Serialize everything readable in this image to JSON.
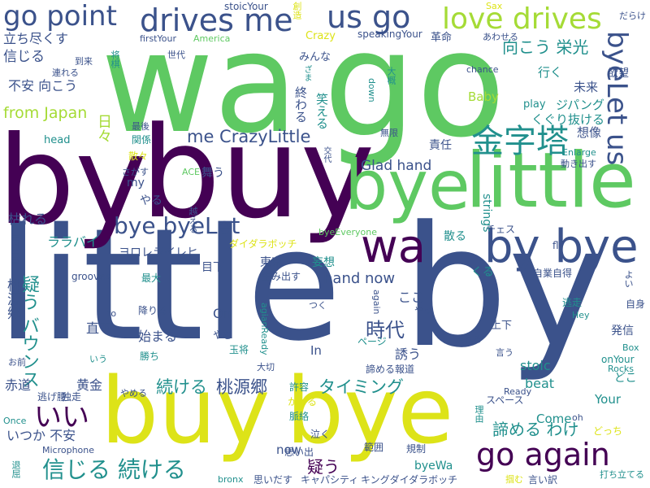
{
  "palette": {
    "purple": "#440154",
    "indigo": "#3b528b",
    "teal": "#21908d",
    "green": "#5ec962",
    "lime": "#a5db36",
    "yellow": "#dde318"
  },
  "words": [
    {
      "text": "little",
      "color": "indigo"
    },
    {
      "text": "by",
      "color": "indigo"
    },
    {
      "text": "wa",
      "color": "green"
    },
    {
      "text": "go",
      "color": "green"
    },
    {
      "text": "by",
      "color": "purple"
    },
    {
      "text": "buy",
      "color": "purple"
    },
    {
      "text": "buy",
      "color": "yellow"
    },
    {
      "text": "bye",
      "color": "yellow"
    },
    {
      "text": "bye",
      "color": "green"
    },
    {
      "text": "little",
      "color": "green"
    },
    {
      "text": "by bye",
      "color": "indigo"
    },
    {
      "text": "wa",
      "color": "purple"
    },
    {
      "text": "go point",
      "color": "indigo"
    },
    {
      "text": "drives me",
      "color": "indigo"
    },
    {
      "text": "us go",
      "color": "indigo"
    },
    {
      "text": "love drives",
      "color": "lime"
    },
    {
      "text": "金字塔",
      "color": "teal"
    },
    {
      "text": "byeLet us",
      "color": "indigo"
    },
    {
      "text": "bye byeLet",
      "color": "indigo"
    },
    {
      "text": "go again",
      "color": "purple"
    },
    {
      "text": "信じる 続ける",
      "color": "teal"
    },
    {
      "text": "me CrazyLittle",
      "color": "indigo"
    },
    {
      "text": "hand now",
      "color": "indigo"
    },
    {
      "text": "Glad hand",
      "color": "indigo"
    },
    {
      "text": "from Japan",
      "color": "lime"
    },
    {
      "text": "いい",
      "color": "purple"
    },
    {
      "text": "向こう 栄光",
      "color": "teal"
    },
    {
      "text": "時代",
      "color": "indigo"
    },
    {
      "text": "桃源郷",
      "color": "indigo"
    },
    {
      "text": "続ける",
      "color": "teal"
    },
    {
      "text": "タイミング",
      "color": "teal"
    },
    {
      "text": "疑う バウンス",
      "color": "teal"
    },
    {
      "text": "諦める わけ",
      "color": "teal"
    },
    {
      "text": "疑う",
      "color": "purple"
    },
    {
      "text": "立ち尽くす",
      "color": "indigo"
    },
    {
      "text": "信じる",
      "color": "indigo"
    },
    {
      "text": "不安 向こう",
      "color": "indigo"
    },
    {
      "text": "日々",
      "color": "lime"
    },
    {
      "text": "枯れる",
      "color": "indigo"
    },
    {
      "text": "ララバイ",
      "color": "teal"
    },
    {
      "text": "from",
      "color": "indigo"
    },
    {
      "text": "桃源郷",
      "color": "indigo"
    },
    {
      "text": "ヨロレライレヒ",
      "color": "indigo"
    },
    {
      "text": "やる",
      "color": "indigo"
    },
    {
      "text": "my",
      "color": "indigo"
    },
    {
      "text": "舞う",
      "color": "indigo"
    },
    {
      "text": "東京",
      "color": "indigo"
    },
    {
      "text": "目下",
      "color": "indigo"
    },
    {
      "text": "始まる",
      "color": "indigo"
    },
    {
      "text": "直下",
      "color": "indigo"
    },
    {
      "text": "On",
      "color": "indigo"
    },
    {
      "text": "黄金",
      "color": "indigo"
    },
    {
      "text": "いつか 不安",
      "color": "indigo"
    },
    {
      "text": "赤道",
      "color": "indigo"
    },
    {
      "text": "head",
      "color": "teal"
    },
    {
      "text": "Baby",
      "color": "lime"
    },
    {
      "text": "play",
      "color": "teal"
    },
    {
      "text": "ジパング",
      "color": "teal"
    },
    {
      "text": "くぐり抜ける",
      "color": "teal"
    },
    {
      "text": "行く",
      "color": "teal"
    },
    {
      "text": "欲望",
      "color": "indigo"
    },
    {
      "text": "未来",
      "color": "indigo"
    },
    {
      "text": "想像",
      "color": "indigo"
    },
    {
      "text": "責任",
      "color": "indigo"
    },
    {
      "text": "妄想",
      "color": "teal"
    },
    {
      "text": "散る",
      "color": "teal"
    },
    {
      "text": "くる",
      "color": "teal"
    },
    {
      "text": "ここ",
      "color": "indigo"
    },
    {
      "text": "誘う",
      "color": "indigo"
    },
    {
      "text": "In",
      "color": "indigo"
    },
    {
      "text": "stoic",
      "color": "teal"
    },
    {
      "text": "beat",
      "color": "teal"
    },
    {
      "text": "Your",
      "color": "teal"
    },
    {
      "text": "Come",
      "color": "teal"
    },
    {
      "text": "now",
      "color": "indigo"
    },
    {
      "text": "byeWa",
      "color": "teal"
    },
    {
      "text": "発信",
      "color": "indigo"
    },
    {
      "text": "どこ",
      "color": "teal"
    },
    {
      "text": "終わる",
      "color": "indigo"
    },
    {
      "text": "笑える",
      "color": "teal"
    },
    {
      "text": "stoicYour",
      "color": "indigo"
    },
    {
      "text": "speakingYour",
      "color": "indigo"
    },
    {
      "text": "Crazy",
      "color": "yellow"
    },
    {
      "text": "革命",
      "color": "indigo"
    },
    {
      "text": "みんな",
      "color": "indigo"
    },
    {
      "text": "strings",
      "color": "teal"
    },
    {
      "text": "上下",
      "color": "indigo"
    },
    {
      "text": "ページ",
      "color": "teal"
    },
    {
      "text": "諦める報道",
      "color": "indigo"
    },
    {
      "text": "スペース",
      "color": "indigo"
    },
    {
      "text": "キャパシティ",
      "color": "indigo"
    },
    {
      "text": "キングダイダラボッチ",
      "color": "indigo"
    },
    {
      "text": "思いだす",
      "color": "indigo"
    },
    {
      "text": "思い出",
      "color": "indigo"
    },
    {
      "text": "範囲",
      "color": "indigo"
    },
    {
      "text": "規制",
      "color": "indigo"
    },
    {
      "text": "泣く",
      "color": "indigo"
    },
    {
      "text": "脈絡",
      "color": "teal"
    },
    {
      "text": "かかる",
      "color": "yellow"
    },
    {
      "text": "許容",
      "color": "teal"
    },
    {
      "text": "大切",
      "color": "indigo"
    },
    {
      "text": "生み出す",
      "color": "indigo"
    },
    {
      "text": "ダイダラボッチ",
      "color": "yellow"
    },
    {
      "text": "byeEveryone",
      "color": "green"
    },
    {
      "text": "チェス",
      "color": "indigo"
    },
    {
      "text": "fly",
      "color": "indigo"
    },
    {
      "text": "自業自得",
      "color": "indigo"
    },
    {
      "text": "逃走",
      "color": "teal"
    },
    {
      "text": "Hey",
      "color": "teal"
    },
    {
      "text": "自身",
      "color": "indigo"
    },
    {
      "text": "Box",
      "color": "teal"
    },
    {
      "text": "onYour",
      "color": "teal"
    },
    {
      "text": "Rocks",
      "color": "teal"
    },
    {
      "text": "oh",
      "color": "indigo"
    },
    {
      "text": "どっち",
      "color": "yellow"
    },
    {
      "text": "打ち立てる",
      "color": "teal"
    },
    {
      "text": "掴む",
      "color": "yellow"
    },
    {
      "text": "言い訳",
      "color": "indigo"
    },
    {
      "text": "Ready",
      "color": "indigo"
    },
    {
      "text": "理由",
      "color": "teal"
    },
    {
      "text": "言う",
      "color": "indigo"
    },
    {
      "text": "走れる",
      "color": "indigo"
    },
    {
      "text": "やっ",
      "color": "indigo"
    },
    {
      "text": "つく",
      "color": "indigo"
    },
    {
      "text": "again",
      "color": "indigo"
    },
    {
      "text": "agianReady",
      "color": "teal"
    },
    {
      "text": "玉将",
      "color": "teal"
    },
    {
      "text": "やむ",
      "color": "indigo"
    },
    {
      "text": "勝ち",
      "color": "teal"
    },
    {
      "text": "to",
      "color": "indigo"
    },
    {
      "text": "降りる",
      "color": "indigo"
    },
    {
      "text": "最大",
      "color": "teal"
    },
    {
      "text": "grooves",
      "color": "indigo"
    },
    {
      "text": "いう",
      "color": "teal"
    },
    {
      "text": "やめる",
      "color": "indigo"
    },
    {
      "text": "逃げ腰",
      "color": "indigo"
    },
    {
      "text": "独走",
      "color": "indigo"
    },
    {
      "text": "Microphone",
      "color": "indigo"
    },
    {
      "text": "Once",
      "color": "teal"
    },
    {
      "text": "退屈",
      "color": "teal"
    },
    {
      "text": "お前",
      "color": "indigo"
    },
    {
      "text": "bronx",
      "color": "teal"
    },
    {
      "text": "越える",
      "color": "indigo"
    },
    {
      "text": "ACE",
      "color": "green"
    },
    {
      "text": "さがす",
      "color": "indigo"
    },
    {
      "text": "散々",
      "color": "yellow"
    },
    {
      "text": "関係",
      "color": "teal"
    },
    {
      "text": "最後",
      "color": "indigo"
    },
    {
      "text": "交代",
      "color": "indigo"
    },
    {
      "text": "動き出す",
      "color": "indigo"
    },
    {
      "text": "Enlarge",
      "color": "teal"
    },
    {
      "text": "無限",
      "color": "indigo"
    },
    {
      "text": "down",
      "color": "teal"
    },
    {
      "text": "大概",
      "color": "teal"
    },
    {
      "text": "chance",
      "color": "indigo"
    },
    {
      "text": "あわせる",
      "color": "indigo"
    },
    {
      "text": "America",
      "color": "green"
    },
    {
      "text": "firstYour",
      "color": "indigo"
    },
    {
      "text": "世代",
      "color": "indigo"
    },
    {
      "text": "将棋",
      "color": "teal"
    },
    {
      "text": "到来",
      "color": "indigo"
    },
    {
      "text": "連れる",
      "color": "indigo"
    },
    {
      "text": "ざま",
      "color": "teal"
    },
    {
      "text": "創造",
      "color": "yellow"
    },
    {
      "text": "Sax",
      "color": "yellow"
    },
    {
      "text": "だらけ",
      "color": "indigo"
    },
    {
      "text": "よい",
      "color": "indigo"
    }
  ]
}
